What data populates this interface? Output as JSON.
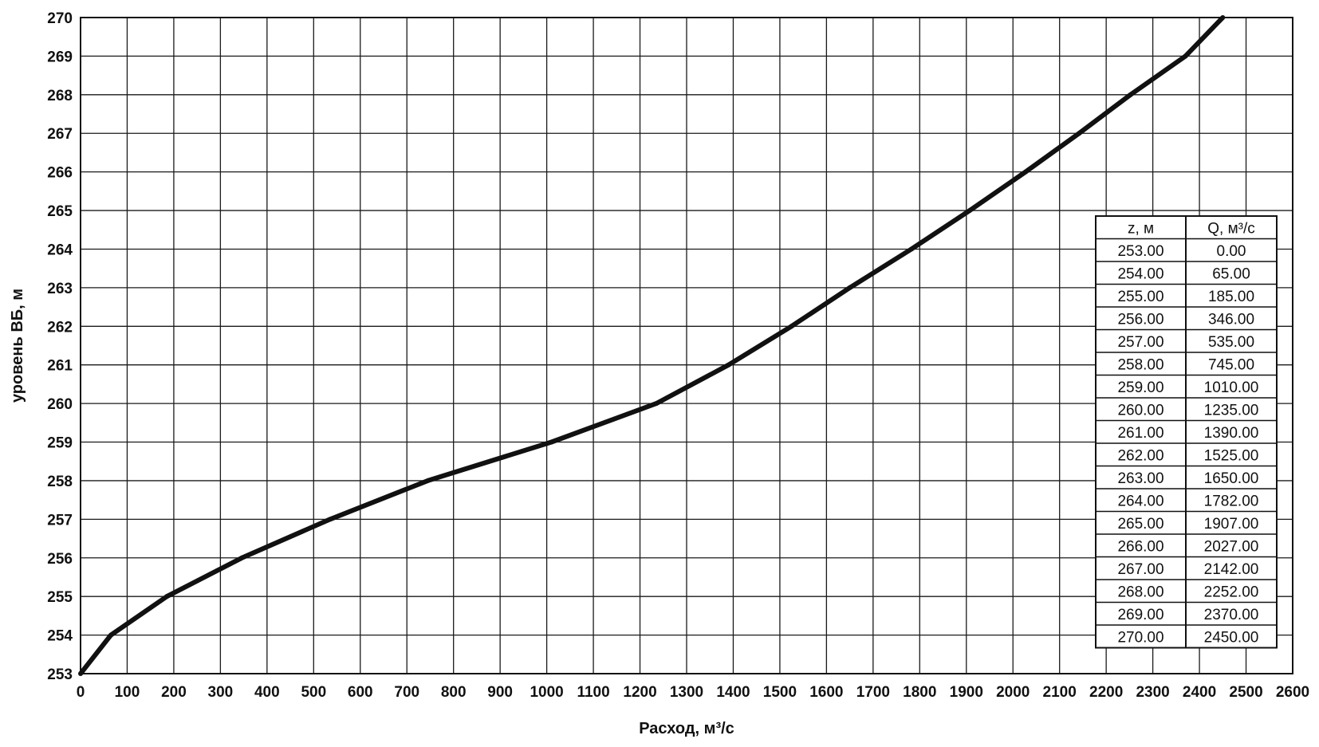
{
  "chart_data": {
    "type": "line",
    "xlabel": "Расход, м³/с",
    "ylabel": "уровень ВБ, м",
    "xlim": [
      0,
      2600
    ],
    "ylim": [
      253,
      270
    ],
    "x_ticks": [
      "0",
      "100",
      "200",
      "300",
      "400",
      "500",
      "600",
      "700",
      "800",
      "900",
      "1000",
      "1100",
      "1200",
      "1300",
      "1400",
      "1500",
      "1600",
      "1700",
      "1800",
      "1900",
      "2000",
      "2100",
      "2200",
      "2300",
      "2400",
      "2500",
      "2600"
    ],
    "y_ticks": [
      "253",
      "254",
      "255",
      "256",
      "257",
      "258",
      "259",
      "260",
      "261",
      "262",
      "263",
      "264",
      "265",
      "266",
      "267",
      "268",
      "269",
      "270"
    ],
    "grid": true,
    "series": [
      {
        "x": [
          0,
          65,
          185,
          346,
          535,
          745,
          1010,
          1235,
          1390,
          1525,
          1650,
          1782,
          1907,
          2027,
          2142,
          2252,
          2370,
          2450
        ],
        "y": [
          253,
          254,
          255,
          256,
          257,
          258,
          259,
          260,
          261,
          262,
          263,
          264,
          265,
          266,
          267,
          268,
          269,
          270
        ],
        "color": "#111111"
      }
    ],
    "table": {
      "position": "right",
      "headers": [
        "z, м",
        "Q, м³/с"
      ],
      "rows": [
        [
          "253.00",
          "0.00"
        ],
        [
          "254.00",
          "65.00"
        ],
        [
          "255.00",
          "185.00"
        ],
        [
          "256.00",
          "346.00"
        ],
        [
          "257.00",
          "535.00"
        ],
        [
          "258.00",
          "745.00"
        ],
        [
          "259.00",
          "1010.00"
        ],
        [
          "260.00",
          "1235.00"
        ],
        [
          "261.00",
          "1390.00"
        ],
        [
          "262.00",
          "1525.00"
        ],
        [
          "263.00",
          "1650.00"
        ],
        [
          "264.00",
          "1782.00"
        ],
        [
          "265.00",
          "1907.00"
        ],
        [
          "266.00",
          "2027.00"
        ],
        [
          "267.00",
          "2142.00"
        ],
        [
          "268.00",
          "2252.00"
        ],
        [
          "269.00",
          "2370.00"
        ],
        [
          "270.00",
          "2450.00"
        ]
      ]
    }
  }
}
